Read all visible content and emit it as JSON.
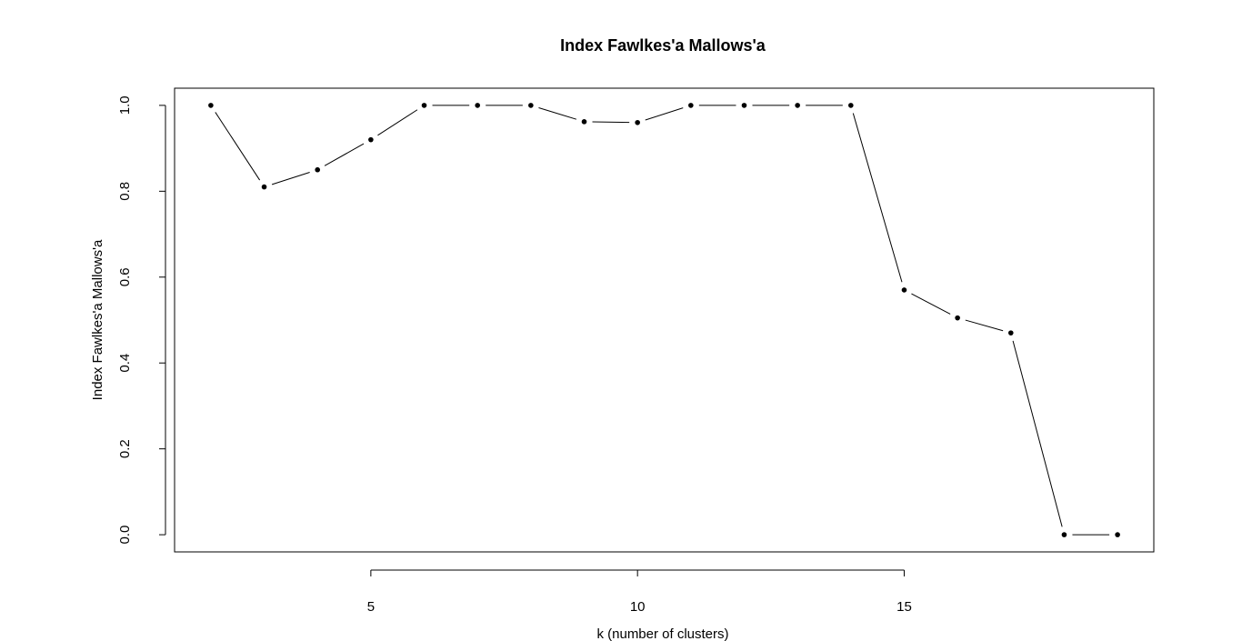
{
  "chart_data": {
    "type": "line",
    "title": "Index Fawlkes'a Mallows'a",
    "xlabel": "k (number of clusters)",
    "ylabel": "Index Fawlkes'a Mallows'a",
    "x": [
      2,
      3,
      4,
      5,
      6,
      7,
      8,
      9,
      10,
      11,
      12,
      13,
      14,
      15,
      16,
      17,
      18,
      19
    ],
    "series": [
      {
        "values": [
          1.0,
          0.81,
          0.85,
          0.92,
          1.0,
          1.0,
          1.0,
          0.962,
          0.96,
          1.0,
          1.0,
          1.0,
          1.0,
          0.57,
          0.505,
          0.47,
          0.0,
          0.0
        ]
      }
    ],
    "xlim": [
      1.32,
      19.68
    ],
    "ylim": [
      -0.04,
      1.04
    ],
    "x_ticks": [
      5,
      10,
      15
    ],
    "x_tick_labels": [
      "5",
      "10",
      "15"
    ],
    "y_ticks": [
      0.0,
      0.2,
      0.4,
      0.6,
      0.8,
      1.0
    ],
    "y_tick_labels": [
      "0.0",
      "0.2",
      "0.4",
      "0.6",
      "0.8",
      "1.0"
    ],
    "grid": false,
    "legend": "none",
    "line_color": "#000000",
    "marker": "filled-circle"
  }
}
